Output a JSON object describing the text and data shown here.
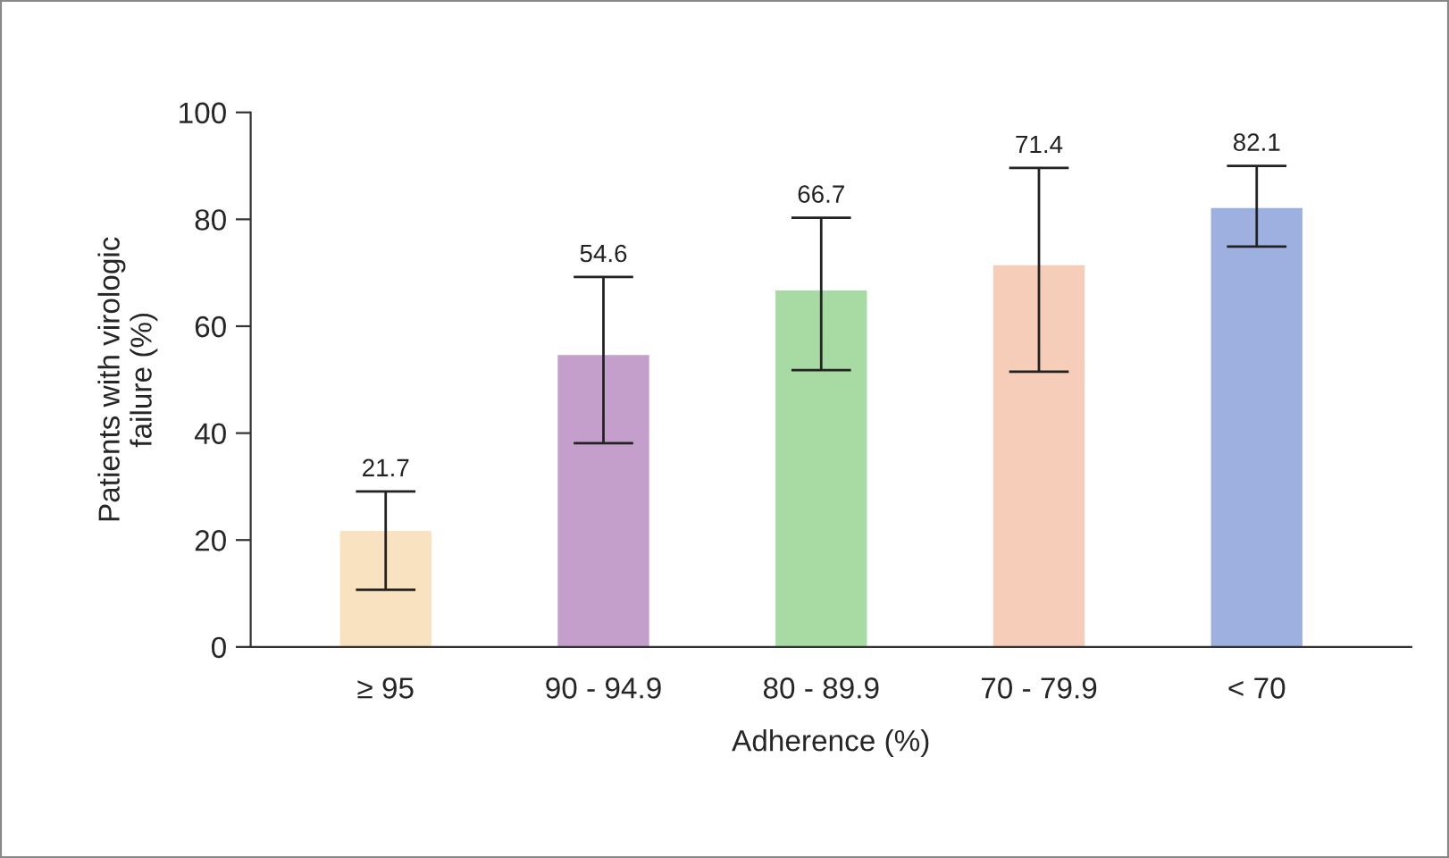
{
  "chart_data": {
    "type": "bar",
    "xlabel": "Adherence (%)",
    "ylabel": "Patients with virologic\nfailure (%)",
    "categories": [
      "≥ 95",
      "90 - 94.9",
      "80 - 89.9",
      "70 - 79.9",
      "< 70"
    ],
    "values": [
      21.7,
      54.6,
      66.7,
      71.4,
      82.1
    ],
    "colors": [
      "#f9e2c0",
      "#c49fcc",
      "#a8dba3",
      "#f5cdb8",
      "#9db0e0"
    ],
    "errors": [
      [
        10.7,
        29.1
      ],
      [
        38.1,
        69.2
      ],
      [
        51.8,
        80.3
      ],
      [
        51.5,
        89.6
      ],
      [
        74.9,
        90.0
      ]
    ],
    "ylim": [
      0,
      100
    ],
    "yticks": [
      0,
      20,
      40,
      60,
      80,
      100
    ],
    "grid": false,
    "annotations": [
      {
        "text": "21.7",
        "x": "≥ 95",
        "y": 29.1
      },
      {
        "text": "54.6",
        "x": "90 - 94.9",
        "y": 69.2
      },
      {
        "text": "66.7",
        "x": "80 - 89.9",
        "y": 80.3
      },
      {
        "text": "71.4",
        "x": "70 - 79.9",
        "y": 89.6
      },
      {
        "text": "82.1",
        "x": "< 70",
        "y": 90.0
      }
    ]
  }
}
